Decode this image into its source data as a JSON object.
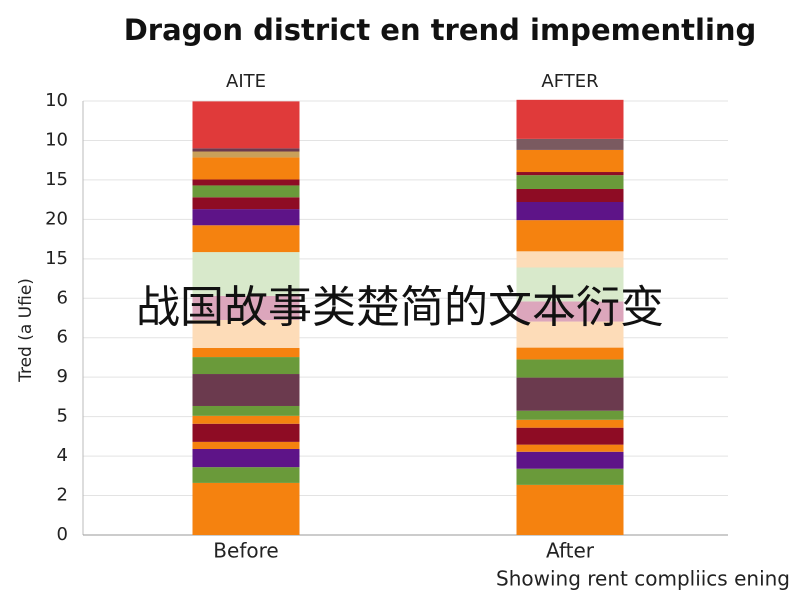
{
  "chart_data": {
    "type": "stacked-bar",
    "title": "Dragon district en trend impementling",
    "column_labels": [
      "AITE",
      "AFTER"
    ],
    "categories": [
      "Before",
      "After"
    ],
    "y_axis_label": "Tred (a Ufie)",
    "x_axis_caption": "Showing rent compliics ening",
    "overlay_text": "战国故事类楚简的文本衍变",
    "y_axis_labels": [
      "0",
      "2",
      "4",
      "5",
      "9",
      "6",
      "6",
      "15",
      "20",
      "15",
      "10",
      "10"
    ],
    "ylim": [
      0,
      11
    ],
    "grid": true,
    "stacks": [
      [
        {
          "value": 1.32,
          "color": "#f5820f"
        },
        {
          "value": 0.4,
          "color": "#6a9a3a"
        },
        {
          "value": 0.46,
          "color": "#5e1488"
        },
        {
          "value": 0.18,
          "color": "#f5820f"
        },
        {
          "value": 0.46,
          "color": "#8e0c24"
        },
        {
          "value": 0.2,
          "color": "#f5820f"
        },
        {
          "value": 0.25,
          "color": "#6a9a3a"
        },
        {
          "value": 0.81,
          "color": "#6b3a4e"
        },
        {
          "value": 0.43,
          "color": "#6a9a3a"
        },
        {
          "value": 0.23,
          "color": "#f5820f"
        },
        {
          "value": 0.71,
          "color": "#fddcb8"
        },
        {
          "value": 0.61,
          "color": "#dca6bc"
        },
        {
          "value": 1.11,
          "color": "#d8e9cb"
        },
        {
          "value": 0.68,
          "color": "#f5820f"
        },
        {
          "value": 0.41,
          "color": "#5e1488"
        },
        {
          "value": 0.3,
          "color": "#8e0c24"
        },
        {
          "value": 0.3,
          "color": "#6a9a3a"
        },
        {
          "value": 0.15,
          "color": "#8e0c24"
        },
        {
          "value": 0.56,
          "color": "#f5820f"
        },
        {
          "value": 0.15,
          "color": "#c9a05a"
        },
        {
          "value": 0.08,
          "color": "#6b3a4e"
        },
        {
          "value": 1.19,
          "color": "#e03a3a"
        }
      ],
      [
        {
          "value": 1.27,
          "color": "#f5820f"
        },
        {
          "value": 0.41,
          "color": "#6a9a3a"
        },
        {
          "value": 0.43,
          "color": "#5e1488"
        },
        {
          "value": 0.18,
          "color": "#f5820f"
        },
        {
          "value": 0.43,
          "color": "#8e0c24"
        },
        {
          "value": 0.2,
          "color": "#f5820f"
        },
        {
          "value": 0.23,
          "color": "#6a9a3a"
        },
        {
          "value": 0.84,
          "color": "#6b3a4e"
        },
        {
          "value": 0.46,
          "color": "#6a9a3a"
        },
        {
          "value": 0.3,
          "color": "#f5820f"
        },
        {
          "value": 0.66,
          "color": "#fddcb8"
        },
        {
          "value": 0.51,
          "color": "#dca6bc"
        },
        {
          "value": 0.86,
          "color": "#d8e9cb"
        },
        {
          "value": 0.41,
          "color": "#fddcb8"
        },
        {
          "value": 0.79,
          "color": "#f5820f"
        },
        {
          "value": 0.46,
          "color": "#5e1488"
        },
        {
          "value": 0.33,
          "color": "#8e0c24"
        },
        {
          "value": 0.35,
          "color": "#6a9a3a"
        },
        {
          "value": 0.08,
          "color": "#8e0c24"
        },
        {
          "value": 0.56,
          "color": "#f5820f"
        },
        {
          "value": 0.28,
          "color": "#7a5a60"
        },
        {
          "value": 0.99,
          "color": "#e03a3a"
        }
      ]
    ]
  }
}
